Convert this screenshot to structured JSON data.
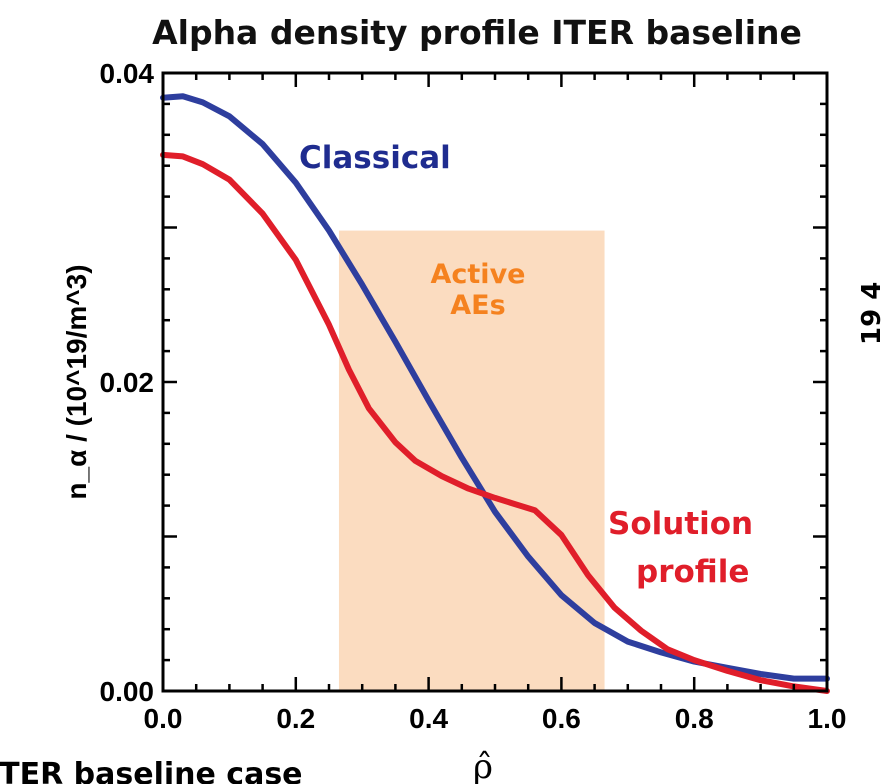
{
  "chart_data": {
    "type": "line",
    "title": "Alpha density profile ITER baseline",
    "xlabel": "ρ̂",
    "ylabel": "n_α / (10^19/m^3)",
    "xlim": [
      0.0,
      1.0
    ],
    "ylim": [
      0.0,
      0.04
    ],
    "x_ticks": [
      "0.0",
      "0.2",
      "0.4",
      "0.6",
      "0.8",
      "1.0"
    ],
    "y_ticks": [
      "0.00",
      "0.02",
      "0.04"
    ],
    "grid": false,
    "series": [
      {
        "name": "Classical",
        "color": "#2e3e9e",
        "x": [
          0.0,
          0.03,
          0.06,
          0.1,
          0.15,
          0.2,
          0.25,
          0.3,
          0.35,
          0.4,
          0.45,
          0.5,
          0.55,
          0.6,
          0.65,
          0.7,
          0.75,
          0.8,
          0.85,
          0.9,
          0.95,
          1.0
        ],
        "y": [
          0.0384,
          0.0385,
          0.0381,
          0.0372,
          0.0354,
          0.0329,
          0.0298,
          0.0263,
          0.0226,
          0.0188,
          0.0151,
          0.0116,
          0.0087,
          0.0062,
          0.0044,
          0.0032,
          0.0025,
          0.0019,
          0.0015,
          0.0011,
          0.0008,
          0.0008
        ]
      },
      {
        "name": "Solution profile",
        "color": "#e01e2a",
        "x": [
          0.0,
          0.03,
          0.06,
          0.1,
          0.15,
          0.2,
          0.25,
          0.28,
          0.31,
          0.35,
          0.38,
          0.42,
          0.46,
          0.5,
          0.53,
          0.56,
          0.6,
          0.64,
          0.68,
          0.72,
          0.76,
          0.8,
          0.85,
          0.9,
          0.95,
          1.0
        ],
        "y": [
          0.0347,
          0.0346,
          0.0341,
          0.0331,
          0.0309,
          0.0279,
          0.0237,
          0.0208,
          0.0183,
          0.0161,
          0.0149,
          0.0139,
          0.0131,
          0.0125,
          0.0121,
          0.0117,
          0.0101,
          0.0075,
          0.0054,
          0.0039,
          0.0027,
          0.002,
          0.0013,
          0.0007,
          0.0003,
          0.0
        ]
      }
    ],
    "shaded_region": {
      "label_lines": [
        "Active",
        "AEs"
      ],
      "x_range": [
        0.265,
        0.665
      ],
      "y_range": [
        0.0,
        0.0298
      ],
      "color": "#fbdcc0",
      "label_color": "#f5821f"
    },
    "annotations": [
      {
        "lines": [
          "Classical"
        ],
        "color": "#1f2c8f"
      },
      {
        "lines": [
          "Solution",
          "profile"
        ],
        "color": "#e01e2a"
      }
    ]
  },
  "clipped_text": {
    "bottom_caption": "ITER baseline case",
    "right_label_partial": "19  4"
  }
}
